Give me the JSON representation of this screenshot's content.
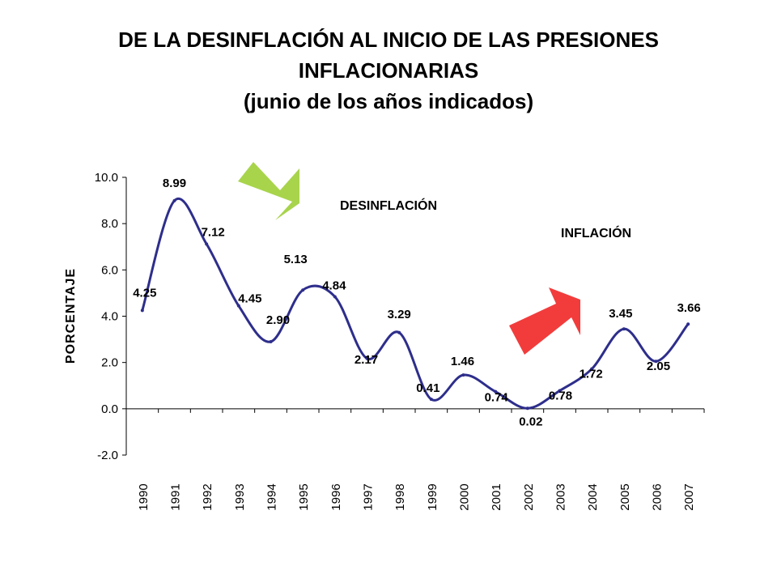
{
  "title": {
    "line1": "DE LA DESINFLACIÓN AL INICIO DE LAS PRESIONES",
    "line2": "INFLACIONARIAS",
    "line3": "(junio de los años indicados)"
  },
  "annotations": {
    "desinflacion": "DESINFLACIÓN",
    "inflacion": "INFLACIÓN"
  },
  "colors": {
    "line": "#2E2E8C",
    "arrow_desinflacion": "#A8D44C",
    "arrow_inflacion": "#F23C3C"
  },
  "chart_data": {
    "type": "line",
    "title": "DE LA DESINFLACIÓN AL INICIO DE LAS PRESIONES INFLACIONARIAS (junio de los años indicados)",
    "xlabel": "",
    "ylabel": "PORCENTAJE",
    "ylim": [
      -2.0,
      10.0
    ],
    "yticks": [
      "10.0",
      "8.0",
      "6.0",
      "4.0",
      "2.0",
      "0.0",
      "-2.0"
    ],
    "categories": [
      "1990",
      "1991",
      "1992",
      "1993",
      "1994",
      "1995",
      "1996",
      "1997",
      "1998",
      "1999",
      "2000",
      "2001",
      "2002",
      "2003",
      "2004",
      "2005",
      "2006",
      "2007"
    ],
    "series": [
      {
        "name": "",
        "values": [
          4.25,
          8.99,
          7.12,
          4.45,
          2.9,
          5.13,
          4.84,
          2.17,
          3.29,
          0.41,
          1.46,
          0.74,
          0.02,
          0.78,
          1.72,
          3.45,
          2.05,
          3.66
        ],
        "labels": [
          "4.25",
          "8.99",
          "7.12",
          "4.45",
          "2.90",
          "5.13",
          "4.84",
          "2.17",
          "3.29",
          "0.41",
          "1.46",
          "0.74",
          "0.02",
          "0.78",
          "1.72",
          "3.45",
          "2.05",
          "3.66"
        ]
      }
    ],
    "legend": "none",
    "grid": false
  }
}
